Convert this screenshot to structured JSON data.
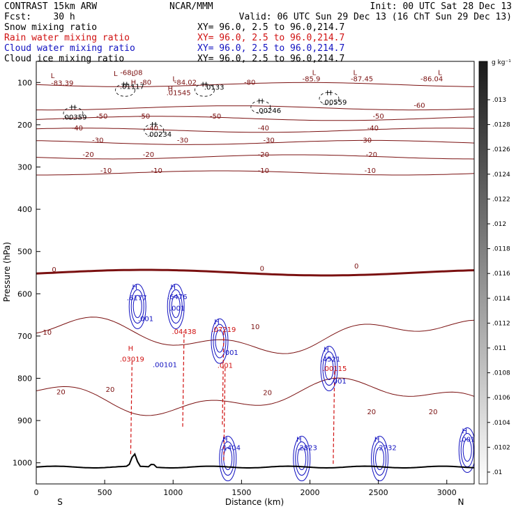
{
  "header": {
    "model": "CONTRAST 15km ARW",
    "org": "NCAR/MMM",
    "init": "Init: 00 UTC Sat 28 Dec 13",
    "fcst": "Fcst:    30 h",
    "valid": "Valid: 06 UTC Sun 29 Dec 13 (16 ChT Sun 29 Dec 13)"
  },
  "fields": [
    {
      "label": "Snow mixing ratio",
      "xy": "XY=  96.0,  2.5 to  96.0,214.7",
      "color": "#000000"
    },
    {
      "label": "Rain water mixing ratio",
      "xy": "XY=  96.0,  2.5 to  96.0,214.7",
      "color": "#d01010"
    },
    {
      "label": "Cloud water mixing ratio",
      "xy": "XY=  96.0,  2.5 to  96.0,214.7",
      "color": "#1010c0"
    },
    {
      "label": "Cloud ice mixing ratio",
      "xy": "XY=  96.0,  2.5 to  96.0,214.7",
      "color": "#000000"
    }
  ],
  "chart_data": {
    "type": "contour-cross-section",
    "xlabel": "Distance (km)",
    "ylabel": "Pressure (hPa)",
    "xlim": [
      0,
      3200
    ],
    "ylim": [
      1050,
      50
    ],
    "x_ticks": [
      0,
      500,
      1000,
      1500,
      2000,
      2500,
      3000
    ],
    "y_ticks": [
      100,
      200,
      300,
      400,
      500,
      600,
      700,
      800,
      900,
      1000
    ],
    "x_end_labels": {
      "left": "S",
      "right": "N"
    },
    "temperature_contours": {
      "color": "#7a1010",
      "levels": [
        {
          "value": -80,
          "p": 105
        },
        {
          "value": -60,
          "p": 160
        },
        {
          "value": -50,
          "p": 185
        },
        {
          "value": -40,
          "p": 213
        },
        {
          "value": -30,
          "p": 242
        },
        {
          "value": -20,
          "p": 276
        },
        {
          "value": -10,
          "p": 314
        },
        {
          "value": 0,
          "p": 550
        },
        {
          "value": 10,
          "p": 700
        },
        {
          "value": 20,
          "p": 845
        }
      ],
      "labels": [
        {
          "text": "-68.08",
          "x": 695,
          "p": 82
        },
        {
          "text": "-83.39",
          "x": 190,
          "p": 107
        },
        {
          "text": "-84.02",
          "x": 1090,
          "p": 105
        },
        {
          "text": "-85.9",
          "x": 2010,
          "p": 97
        },
        {
          "text": "-87.45",
          "x": 2380,
          "p": 97
        },
        {
          "text": "-86.04",
          "x": 2890,
          "p": 97
        },
        {
          "text": "-80",
          "x": 1560,
          "p": 105
        },
        {
          "text": "-60",
          "x": 2800,
          "p": 160
        },
        {
          "text": "-50",
          "x": 480,
          "p": 185
        },
        {
          "text": "-50",
          "x": 790,
          "p": 185
        },
        {
          "text": "-50",
          "x": 1310,
          "p": 185
        },
        {
          "text": "-50",
          "x": 2500,
          "p": 185
        },
        {
          "text": "-40",
          "x": 300,
          "p": 213
        },
        {
          "text": "-40",
          "x": 850,
          "p": 213
        },
        {
          "text": "-40",
          "x": 1660,
          "p": 213
        },
        {
          "text": "-40",
          "x": 2460,
          "p": 213
        },
        {
          "text": "-30",
          "x": 450,
          "p": 242
        },
        {
          "text": "-30",
          "x": 1070,
          "p": 242
        },
        {
          "text": "-30",
          "x": 1700,
          "p": 242
        },
        {
          "text": "-30",
          "x": 2410,
          "p": 242
        },
        {
          "text": "-20",
          "x": 380,
          "p": 276
        },
        {
          "text": "-20",
          "x": 820,
          "p": 276
        },
        {
          "text": "-20",
          "x": 1660,
          "p": 276
        },
        {
          "text": "-20",
          "x": 2450,
          "p": 276
        },
        {
          "text": "-10",
          "x": 510,
          "p": 314
        },
        {
          "text": "-10",
          "x": 880,
          "p": 314
        },
        {
          "text": "-10",
          "x": 1660,
          "p": 314
        },
        {
          "text": "-10",
          "x": 2440,
          "p": 314
        },
        {
          "text": "0",
          "x": 130,
          "p": 548
        },
        {
          "text": "0",
          "x": 1650,
          "p": 546
        },
        {
          "text": "0",
          "x": 2340,
          "p": 540
        },
        {
          "text": "10",
          "x": 80,
          "p": 697
        },
        {
          "text": "10",
          "x": 1600,
          "p": 684
        },
        {
          "text": "20",
          "x": 180,
          "p": 838
        },
        {
          "text": "20",
          "x": 540,
          "p": 832
        },
        {
          "text": "20",
          "x": 1690,
          "p": 840
        },
        {
          "text": "20",
          "x": 2450,
          "p": 885
        },
        {
          "text": "20",
          "x": 2900,
          "p": 885
        }
      ]
    },
    "rain_water": {
      "color": "#d01010",
      "labels": [
        {
          "text": "H",
          "x": 690,
          "p": 735
        },
        {
          "text": ".03019",
          "x": 700,
          "p": 760
        },
        {
          "text": ".04438",
          "x": 1080,
          "p": 695
        },
        {
          "text": ".07219",
          "x": 1370,
          "p": 690
        },
        {
          "text": ".001",
          "x": 1380,
          "p": 775
        },
        {
          "text": ".00115",
          "x": 2180,
          "p": 783
        }
      ]
    },
    "cloud_water": {
      "color": "#1010c0",
      "labels": [
        {
          "text": "H",
          "x": 720,
          "p": 590
        },
        {
          "text": ".6177",
          "x": 735,
          "p": 615
        },
        {
          "text": ".001",
          "x": 800,
          "p": 665
        },
        {
          "text": "H",
          "x": 1000,
          "p": 590
        },
        {
          "text": ".6476",
          "x": 1030,
          "p": 613
        },
        {
          "text": ".001",
          "x": 1030,
          "p": 640
        },
        {
          "text": ".00101",
          "x": 940,
          "p": 774
        },
        {
          "text": "H",
          "x": 1320,
          "p": 672
        },
        {
          "text": ".001",
          "x": 1420,
          "p": 745
        },
        {
          "text": "H",
          "x": 2120,
          "p": 737
        },
        {
          "text": ".4521",
          "x": 2150,
          "p": 760
        },
        {
          "text": ".001",
          "x": 2210,
          "p": 812
        },
        {
          "text": "H",
          "x": 1380,
          "p": 950
        },
        {
          "text": ".1404",
          "x": 1420,
          "p": 970
        },
        {
          "text": "H",
          "x": 1920,
          "p": 950
        },
        {
          "text": ".2823",
          "x": 1980,
          "p": 970
        },
        {
          "text": "H",
          "x": 2490,
          "p": 950
        },
        {
          "text": ".2732",
          "x": 2560,
          "p": 970
        },
        {
          "text": "H",
          "x": 3130,
          "p": 930
        },
        {
          "text": ".001",
          "x": 3150,
          "p": 950
        }
      ]
    },
    "snow": {
      "color": "#000000",
      "labels": [
        {
          "text": "H",
          "x": 270,
          "p": 165
        },
        {
          "text": ".00359",
          "x": 280,
          "p": 188
        },
        {
          "text": "H",
          "x": 650,
          "p": 110
        },
        {
          "text": ".01117",
          "x": 700,
          "p": 115
        },
        {
          "text": "H",
          "x": 860,
          "p": 205
        },
        {
          "text": ".00234",
          "x": 900,
          "p": 228
        },
        {
          "text": "H",
          "x": 1230,
          "p": 110
        },
        {
          "text": ".0133",
          "x": 1300,
          "p": 117
        },
        {
          "text": "H",
          "x": 1640,
          "p": 150
        },
        {
          "text": ".00246",
          "x": 1700,
          "p": 172
        },
        {
          "text": "H",
          "x": 2140,
          "p": 130
        },
        {
          "text": ".00559",
          "x": 2180,
          "p": 152
        }
      ]
    },
    "cloud_ice": {
      "color": "#000000",
      "labels": [
        {
          "text": "L",
          "x": 120,
          "p": 90
        },
        {
          "text": "L",
          "x": 580,
          "p": 85
        },
        {
          "text": "L",
          "x": 710,
          "p": 85
        },
        {
          "text": "H",
          "x": 710,
          "p": 105
        },
        {
          "text": "-80",
          "x": 800,
          "p": 105
        },
        {
          "text": "L",
          "x": 1010,
          "p": 97
        },
        {
          "text": "H",
          "x": 980,
          "p": 120
        },
        {
          "text": ".01545",
          "x": 1040,
          "p": 130
        },
        {
          "text": "L",
          "x": 2030,
          "p": 82
        },
        {
          "text": "L",
          "x": 2330,
          "p": 82
        },
        {
          "text": "L",
          "x": 2950,
          "p": 82
        }
      ]
    },
    "colorbar": {
      "unit": "g kg⁻¹",
      "ticks": [
        ".01",
        ".0102",
        ".0104",
        ".0106",
        ".0108",
        ".011",
        ".0112",
        ".0114",
        ".0116",
        ".0118",
        ".012",
        ".0122",
        ".0124",
        ".0126",
        ".0128",
        ".013"
      ]
    }
  }
}
